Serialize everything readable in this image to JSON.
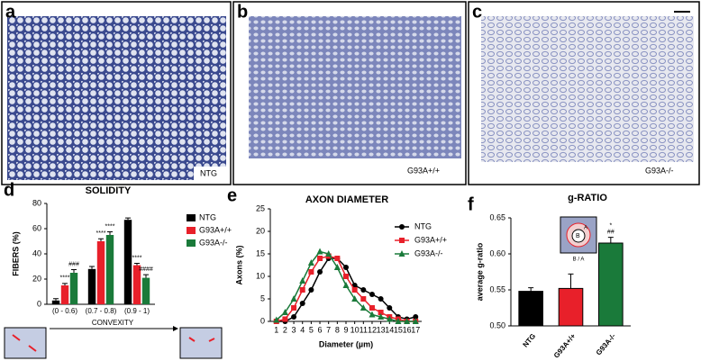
{
  "panels": [
    {
      "letter": "a",
      "label": "NTG"
    },
    {
      "letter": "b",
      "label": "G93A+/+"
    },
    {
      "letter": "c",
      "label": "G93A-/-"
    }
  ],
  "chart_data": [
    {
      "panel": "d",
      "type": "bar",
      "title": "SOLIDITY",
      "y_label": "FIBERS (%)",
      "x_label": "CONVEXITY",
      "categories": [
        "(0 - 0.6)",
        "(0.7 - 0.8)",
        "(0.9 - 1)"
      ],
      "series": [
        {
          "name": "NTG",
          "color": "#000000",
          "values": [
            3,
            28,
            67
          ],
          "errors": [
            1.5,
            2,
            1.5
          ]
        },
        {
          "name": "G93A+/+",
          "color": "#e8202a",
          "values": [
            15,
            50,
            31
          ],
          "errors": [
            1.5,
            2,
            1.5
          ],
          "significance": [
            "****",
            "****",
            "****"
          ]
        },
        {
          "name": "G93A-/-",
          "color": "#1a7a3a",
          "values": [
            25,
            55,
            21
          ],
          "errors": [
            2.5,
            2.5,
            2.5
          ],
          "significance": [
            "###",
            "****",
            "####"
          ]
        }
      ],
      "ylim": [
        0,
        80
      ],
      "yticks": [
        0,
        20,
        40,
        60,
        80
      ],
      "legend": "right"
    },
    {
      "panel": "e",
      "type": "line",
      "title": "AXON DIAMETER",
      "y_label": "Axons (%)",
      "x_label": "Diameter (µm)",
      "x": [
        1,
        2,
        3,
        4,
        5,
        6,
        7,
        8,
        9,
        10,
        11,
        12,
        13,
        14,
        15,
        16,
        17
      ],
      "series": [
        {
          "name": "NTG",
          "color": "#000000",
          "marker": "circle",
          "values": [
            0,
            0,
            1,
            4,
            7,
            11,
            14,
            14,
            12,
            8,
            7,
            6,
            5,
            3,
            1,
            0.5,
            1
          ]
        },
        {
          "name": "G93A+/+",
          "color": "#e8202a",
          "marker": "square",
          "values": [
            0,
            0.5,
            3,
            7,
            11,
            14,
            14.5,
            14,
            10,
            7,
            5,
            3,
            2,
            1,
            0.5,
            0,
            0
          ]
        },
        {
          "name": "G93A-/-",
          "color": "#1a7a3a",
          "marker": "triangle",
          "values": [
            0.3,
            2,
            5,
            9,
            13,
            15.5,
            15,
            12,
            8,
            5,
            3,
            1.5,
            1,
            0.5,
            0,
            0,
            0
          ]
        }
      ],
      "xlim": [
        0.3,
        17.7
      ],
      "xticks": [
        1,
        2,
        3,
        4,
        5,
        6,
        7,
        8,
        9,
        10,
        11,
        12,
        13,
        14,
        15,
        16,
        17
      ],
      "ylim": [
        0,
        25
      ],
      "yticks": [
        0,
        5,
        10,
        15,
        20,
        25
      ],
      "legend": "upper right"
    },
    {
      "panel": "f",
      "type": "bar",
      "title": "g-RATIO",
      "y_label": "average g-ratio",
      "inset_label": "B / A",
      "categories": [
        "NTG",
        "G93A+/+",
        "G93A-/-"
      ],
      "values": [
        0.548,
        0.552,
        0.615
      ],
      "errors": [
        0.005,
        0.02,
        0.008
      ],
      "colors": [
        "#000000",
        "#e8202a",
        "#1a7a3a"
      ],
      "significance": [
        null,
        null,
        [
          "*",
          "##"
        ]
      ],
      "ylim": [
        0.5,
        0.65
      ],
      "yticks": [
        {
          "value": 0.5,
          "label": "0.50"
        },
        {
          "value": 0.55,
          "label": "0.55"
        },
        {
          "value": 0.6,
          "label": "0.60"
        },
        {
          "value": 0.65,
          "label": "0.65"
        }
      ]
    }
  ]
}
